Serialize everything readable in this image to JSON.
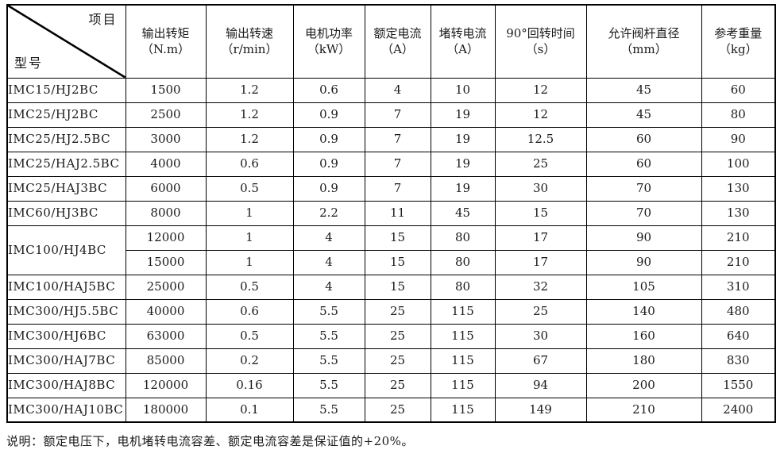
{
  "table": {
    "header": {
      "corner_top": "项目",
      "corner_bottom": "型号",
      "columns": [
        {
          "label": "输出转矩",
          "unit": "（N.m）"
        },
        {
          "label": "输出转速",
          "unit": "（r/min）"
        },
        {
          "label": "电机功率",
          "unit": "（kW）"
        },
        {
          "label": "额定电流",
          "unit": "（A）"
        },
        {
          "label": "堵转电流",
          "unit": "（A）"
        },
        {
          "label": "90°回转时间",
          "unit": "（s）"
        },
        {
          "label": "允许阀杆直径",
          "unit": "（mm）"
        },
        {
          "label": "参考重量",
          "unit": "（kg）"
        }
      ]
    },
    "rows": [
      {
        "model": "IMC15/HJ2BC",
        "rowspan": 1,
        "values": [
          "1500",
          "1.2",
          "0.6",
          "4",
          "10",
          "12",
          "45",
          "60"
        ]
      },
      {
        "model": "IMC25/HJ2BC",
        "rowspan": 1,
        "values": [
          "2500",
          "1.2",
          "0.9",
          "7",
          "19",
          "12",
          "45",
          "80"
        ]
      },
      {
        "model": "IMC25/HJ2.5BC",
        "rowspan": 1,
        "values": [
          "3000",
          "1.2",
          "0.9",
          "7",
          "19",
          "12.5",
          "60",
          "90"
        ]
      },
      {
        "model": "IMC25/HAJ2.5BC",
        "rowspan": 1,
        "values": [
          "4000",
          "0.6",
          "0.9",
          "7",
          "19",
          "25",
          "60",
          "100"
        ]
      },
      {
        "model": "IMC25/HAJ3BC",
        "rowspan": 1,
        "values": [
          "6000",
          "0.5",
          "0.9",
          "7",
          "19",
          "30",
          "70",
          "130"
        ]
      },
      {
        "model": "IMC60/HJ3BC",
        "rowspan": 1,
        "values": [
          "8000",
          "1",
          "2.2",
          "11",
          "45",
          "15",
          "70",
          "130"
        ]
      },
      {
        "model": "IMC100/HJ4BC",
        "rowspan": 2,
        "values": [
          "12000",
          "1",
          "4",
          "15",
          "80",
          "17",
          "90",
          "210"
        ]
      },
      {
        "model": null,
        "rowspan": 1,
        "values": [
          "15000",
          "1",
          "4",
          "15",
          "80",
          "17",
          "90",
          "210"
        ]
      },
      {
        "model": "IMC100/HAJ5BC",
        "rowspan": 1,
        "values": [
          "25000",
          "0.5",
          "4",
          "15",
          "80",
          "32",
          "105",
          "310"
        ]
      },
      {
        "model": "IMC300/HJ5.5BC",
        "rowspan": 1,
        "values": [
          "40000",
          "0.6",
          "5.5",
          "25",
          "115",
          "25",
          "140",
          "480"
        ]
      },
      {
        "model": "IMC300/HJ6BC",
        "rowspan": 1,
        "values": [
          "63000",
          "0.5",
          "5.5",
          "25",
          "115",
          "30",
          "160",
          "640"
        ]
      },
      {
        "model": "IMC300/HAJ7BC",
        "rowspan": 1,
        "values": [
          "85000",
          "0.2",
          "5.5",
          "25",
          "115",
          "67",
          "180",
          "830"
        ]
      },
      {
        "model": "IMC300/HAJ8BC",
        "rowspan": 1,
        "values": [
          "120000",
          "0.16",
          "5.5",
          "25",
          "115",
          "94",
          "200",
          "1550"
        ]
      },
      {
        "model": "IMC300/HAJ10BC",
        "rowspan": 1,
        "values": [
          "180000",
          "0.1",
          "5.5",
          "25",
          "115",
          "149",
          "210",
          "2400"
        ]
      }
    ],
    "note": "说明：额定电压下，电机堵转电流容差、额定电流容差是保证值的+20%。"
  },
  "colors": {
    "border": "#000000",
    "text": "#1a1a1a",
    "background": "#ffffff"
  }
}
